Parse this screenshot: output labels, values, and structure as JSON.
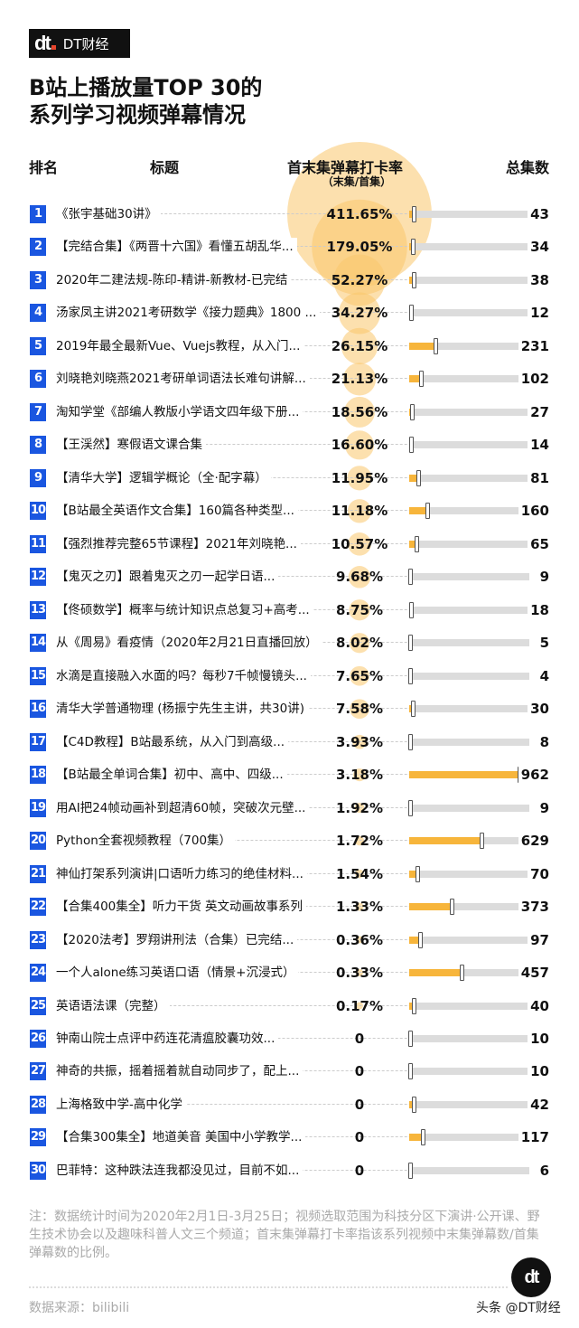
{
  "brand": {
    "logo_text": "DT财经",
    "logo_mark": "dt"
  },
  "title_lines": [
    "B站上播放量TOP 30的",
    "系列学习视频弹幕情况"
  ],
  "headers": {
    "rank": "排名",
    "title": "标题",
    "rate": "首末集弹幕打卡率",
    "rate_sub": "（末集/首集）",
    "episodes": "总集数"
  },
  "colors": {
    "badge": "#1a56e0",
    "bubble": "#f9c76b",
    "bar_fill": "#f7b53b",
    "bar_bg": "#dcdcdc"
  },
  "chart_data": {
    "type": "table",
    "columns": [
      "排名",
      "标题",
      "首末集弹幕打卡率",
      "总集数"
    ],
    "rows": [
      {
        "rank": "1",
        "title": "《张宇基础30讲》",
        "rate_label": "411.65%",
        "rate": 411.65,
        "episodes": 43
      },
      {
        "rank": "2",
        "title": "【完结合集】《两晋十六国》看懂五胡乱华...",
        "rate_label": "179.05%",
        "rate": 179.05,
        "episodes": 34
      },
      {
        "rank": "3",
        "title": "2020年二建法规-陈印-精讲-新教材-已完结",
        "rate_label": "52.27%",
        "rate": 52.27,
        "episodes": 38
      },
      {
        "rank": "4",
        "title": "汤家凤主讲2021考研数学《接力题典》1800 ...",
        "rate_label": "34.27%",
        "rate": 34.27,
        "episodes": 12
      },
      {
        "rank": "5",
        "title": "2019年最全最新Vue、Vuejs教程，从入门...",
        "rate_label": "26.15%",
        "rate": 26.15,
        "episodes": 231
      },
      {
        "rank": "6",
        "title": "刘晓艳刘晓燕2021考研单词语法长难句讲解...",
        "rate_label": "21.13%",
        "rate": 21.13,
        "episodes": 102
      },
      {
        "rank": "7",
        "title": "淘知学堂《部编人教版小学语文四年级下册...",
        "rate_label": "18.56%",
        "rate": 18.56,
        "episodes": 27
      },
      {
        "rank": "8",
        "title": "【王渓然】寒假语文课合集",
        "rate_label": "16.60%",
        "rate": 16.6,
        "episodes": 14
      },
      {
        "rank": "9",
        "title": "【清华大学】逻辑学概论（全·配字幕）",
        "rate_label": "11.95%",
        "rate": 11.95,
        "episodes": 81
      },
      {
        "rank": "10",
        "title": "【B站最全英语作文合集】160篇各种类型...",
        "rate_label": "11.18%",
        "rate": 11.18,
        "episodes": 160
      },
      {
        "rank": "11",
        "title": "【强烈推荐完整65节课程】2021年刘晓艳...",
        "rate_label": "10.57%",
        "rate": 10.57,
        "episodes": 65
      },
      {
        "rank": "12",
        "title": "【鬼灭之刃】跟着鬼灭之刃一起学日语...",
        "rate_label": "9.68%",
        "rate": 9.68,
        "episodes": 9
      },
      {
        "rank": "13",
        "title": "【佟硕数学】概率与统计知识点总复习+高考...",
        "rate_label": "8.75%",
        "rate": 8.75,
        "episodes": 18
      },
      {
        "rank": "14",
        "title": "从《周易》看疫情（2020年2月21日直播回放）",
        "rate_label": "8.02%",
        "rate": 8.02,
        "episodes": 5
      },
      {
        "rank": "15",
        "title": "水滴是直接融入水面的吗？每秒7千帧慢镜头...",
        "rate_label": "7.65%",
        "rate": 7.65,
        "episodes": 4
      },
      {
        "rank": "16",
        "title": "清华大学普通物理 (杨振宁先生主讲，共30讲)",
        "rate_label": "7.58%",
        "rate": 7.58,
        "episodes": 30
      },
      {
        "rank": "17",
        "title": "【C4D教程】B站最系统，从入门到高级...",
        "rate_label": "3.93%",
        "rate": 3.93,
        "episodes": 8
      },
      {
        "rank": "18",
        "title": "【B站最全单词合集】初中、高中、四级...",
        "rate_label": "3.18%",
        "rate": 3.18,
        "episodes": 962
      },
      {
        "rank": "19",
        "title": "用AI把24帧动画补到超清60帧，突破次元壁...",
        "rate_label": "1.92%",
        "rate": 1.92,
        "episodes": 9
      },
      {
        "rank": "20",
        "title": "Python全套视频教程（700集）",
        "rate_label": "1.72%",
        "rate": 1.72,
        "episodes": 629
      },
      {
        "rank": "21",
        "title": "神仙打架系列演讲|口语听力练习的绝佳材料...",
        "rate_label": "1.54%",
        "rate": 1.54,
        "episodes": 70
      },
      {
        "rank": "22",
        "title": "【合集400集全】听力干货 英文动画故事系列",
        "rate_label": "1.33%",
        "rate": 1.33,
        "episodes": 373
      },
      {
        "rank": "23",
        "title": "【2020法考】罗翔讲刑法（合集）已完结...",
        "rate_label": "0.36%",
        "rate": 0.36,
        "episodes": 97
      },
      {
        "rank": "24",
        "title": "一个人alone练习英语口语（情景+沉浸式）",
        "rate_label": "0.33%",
        "rate": 0.33,
        "episodes": 457
      },
      {
        "rank": "25",
        "title": "英语语法课（完整）",
        "rate_label": "0.17%",
        "rate": 0.17,
        "episodes": 40
      },
      {
        "rank": "26",
        "title": "钟南山院士点评中药连花清瘟胶囊功效...",
        "rate_label": "0",
        "rate": 0,
        "episodes": 10
      },
      {
        "rank": "27",
        "title": "神奇的共振，摇着摇着就自动同步了，配上...",
        "rate_label": "0",
        "rate": 0,
        "episodes": 10
      },
      {
        "rank": "28",
        "title": "上海格致中学-高中化学",
        "rate_label": "0",
        "rate": 0,
        "episodes": 42
      },
      {
        "rank": "29",
        "title": "【合集300集全】地道美音 美国中小学教学...",
        "rate_label": "0",
        "rate": 0,
        "episodes": 117
      },
      {
        "rank": "30",
        "title": "巴菲特：这种跌法连我都没见过，目前不如...",
        "rate_label": "0",
        "rate": 0,
        "episodes": 6
      }
    ]
  },
  "footer": {
    "note": "注：数据统计时间为2020年2月1日-3月25日；视频选取范围为科技分区下演讲·公开课、野生技术协会以及趣味科普人文三个频道；首末集弹幕打卡率指该系列视频中末集弹幕数/首集弹幕数的比例。",
    "source": "数据来源：bilibili",
    "watermark": "头条 @DT财经"
  }
}
